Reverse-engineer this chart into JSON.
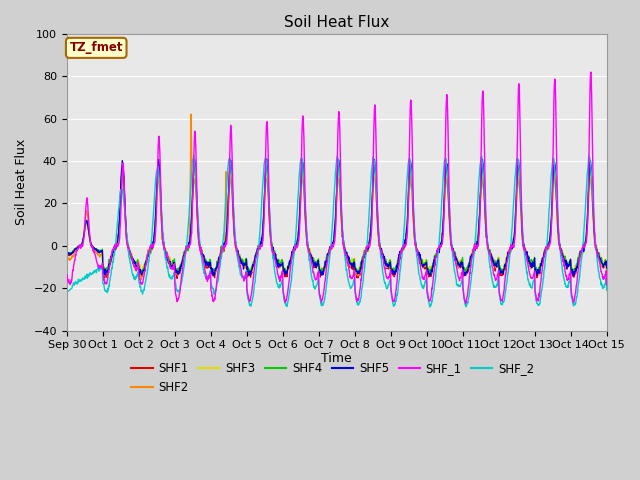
{
  "title": "Soil Heat Flux",
  "ylabel": "Soil Heat Flux",
  "xlabel": "Time",
  "ylim": [
    -40,
    100
  ],
  "annotation_text": "TZ_fmet",
  "annotation_bg": "#ffffcc",
  "annotation_border": "#aa6600",
  "annotation_text_color": "#880000",
  "series_colors": {
    "SHF1": "#dd0000",
    "SHF2": "#ff8800",
    "SHF3": "#dddd00",
    "SHF4": "#00cc00",
    "SHF5": "#0000dd",
    "SHF_1": "#ff00ff",
    "SHF_2": "#00cccc"
  },
  "x_tick_labels": [
    "Sep 30",
    "Oct 1",
    "Oct 2",
    "Oct 3",
    "Oct 4",
    "Oct 5",
    "Oct 6",
    "Oct 7",
    "Oct 8",
    "Oct 9",
    "Oct 10",
    "Oct 11",
    "Oct 12",
    "Oct 13",
    "Oct 14",
    "Oct 15"
  ],
  "plot_facecolor": "#e8e8e8",
  "fig_facecolor": "#d0d0d0",
  "grid_color": "#ffffff"
}
